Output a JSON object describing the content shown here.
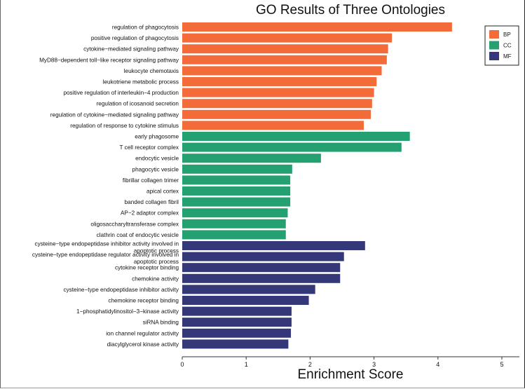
{
  "chart_data": {
    "type": "bar",
    "orientation": "horizontal",
    "title": "GO Results of Three Ontologies",
    "xlabel": "Enrichment Score",
    "ylabel": "",
    "xlim": [
      0,
      5
    ],
    "xticks": [
      "0",
      "1",
      "2",
      "3",
      "4",
      "5"
    ],
    "grid": false,
    "legend_position": "top-right",
    "series": [
      {
        "name": "BP",
        "color": "#f26b38",
        "categories": [
          "regulation of phagocytosis",
          "positive regulation of phagocytosis",
          "cytokine−mediated signaling pathway",
          "MyD88−dependent toll−like receptor signaling pathway",
          "leukocyte chemotaxis",
          "leukotriene metabolic process",
          "positive regulation of interleukin−4 production",
          "regulation of icosanoid secretion",
          "regulation of cytokine−mediated signaling pathway",
          "regulation of response to cytokine stimulus"
        ],
        "values": [
          4.22,
          3.28,
          3.22,
          3.2,
          3.12,
          3.04,
          3.0,
          2.97,
          2.95,
          2.84
        ]
      },
      {
        "name": "CC",
        "color": "#25a070",
        "categories": [
          "early phagosome",
          "T cell receptor complex",
          "endocytic vesicle",
          "phagocytic vesicle",
          "fibrillar collagen trimer",
          "apical cortex",
          "banded collagen fibril",
          "AP−2 adaptor complex",
          "oligosaccharyltransferase complex",
          "clathrin coat of endocytic vesicle"
        ],
        "values": [
          3.56,
          3.43,
          2.17,
          1.72,
          1.69,
          1.69,
          1.69,
          1.65,
          1.62,
          1.62
        ]
      },
      {
        "name": "MF",
        "color": "#343878",
        "categories": [
          "cysteine−type endopeptidase inhibitor activity involved in apoptotic process",
          "cysteine−type endopeptidase regulator activity involved in apoptotic process",
          "cytokine receptor binding",
          "chemokine activity",
          "cysteine−type endopeptidase inhibitor activity",
          "chemokine receptor binding",
          "1−phosphatidylinositol−3−kinase activity",
          "siRNA binding",
          "ion channel regulator activity",
          "diacylglycerol kinase activity"
        ],
        "values": [
          2.86,
          2.53,
          2.47,
          2.47,
          2.08,
          1.98,
          1.71,
          1.71,
          1.7,
          1.66
        ]
      }
    ]
  }
}
